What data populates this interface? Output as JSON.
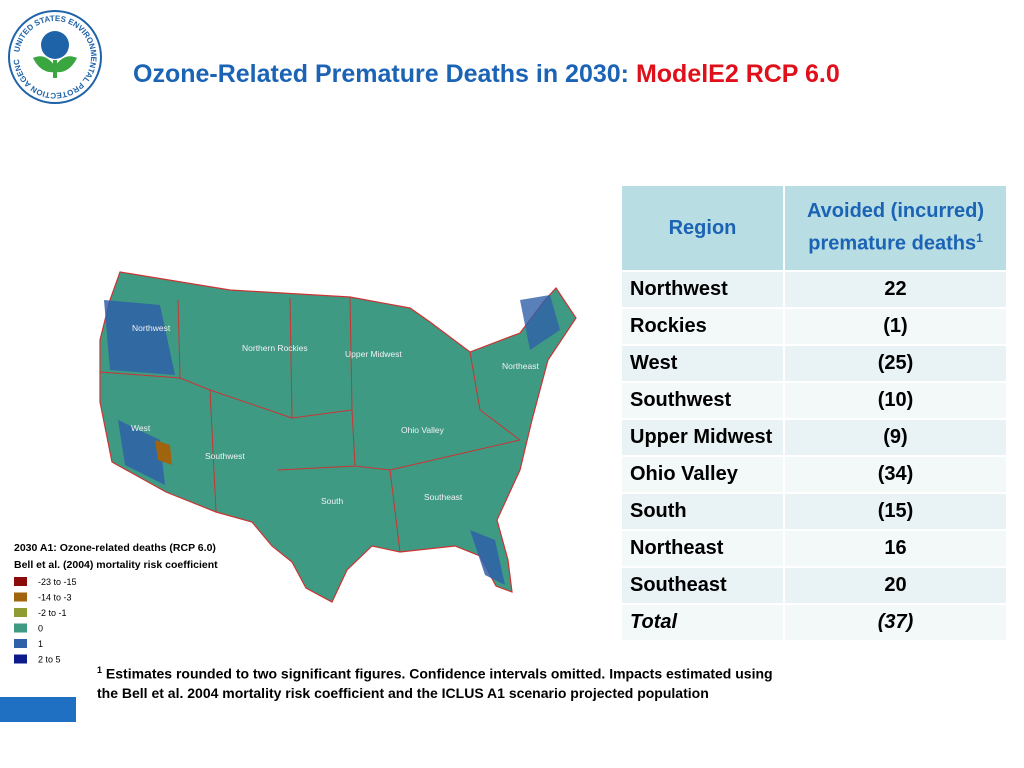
{
  "header": {
    "logo_text": "UNITED STATES ENVIRONMENTAL PROTECTION AGENCY",
    "title_main": "Ozone-Related Premature Deaths in 2030:",
    "title_model": "ModelE2 RCP 6.0"
  },
  "map": {
    "region_labels": [
      "Northwest",
      "Northern Rockies",
      "Upper Midwest",
      "Northeast",
      "West",
      "Ohio Valley",
      "Southwest",
      "South",
      "Southeast"
    ],
    "legend": {
      "title_line1": "2030 A1: Ozone-related deaths (RCP 6.0)",
      "title_line2": "Bell et al. (2004) mortality risk coefficient",
      "items": [
        {
          "label": "-23 to -15",
          "color": "#8b0a0a"
        },
        {
          "label": "-14 to -3",
          "color": "#a0640f"
        },
        {
          "label": "-2 to -1",
          "color": "#8f9c32"
        },
        {
          "label": "0",
          "color": "#3f9a84"
        },
        {
          "label": "1",
          "color": "#2f60a8"
        },
        {
          "label": "2 to 5",
          "color": "#0c1a8c"
        }
      ]
    }
  },
  "table": {
    "header": [
      "Region",
      "Avoided (incurred) premature deaths",
      "1"
    ],
    "rows": [
      [
        "Northwest",
        "22"
      ],
      [
        "Rockies",
        "(1)"
      ],
      [
        "West",
        "(25)"
      ],
      [
        "Southwest",
        "(10)"
      ],
      [
        "Upper Midwest",
        "(9)"
      ],
      [
        "Ohio Valley",
        "(34)"
      ],
      [
        "South",
        "(15)"
      ],
      [
        "Northeast",
        "16"
      ],
      [
        "Southeast",
        "20"
      ],
      [
        "Total",
        "(37)"
      ]
    ]
  },
  "footnote": {
    "marker": "1",
    "text": "Estimates rounded to two significant figures. Confidence intervals omitted. Impacts estimated using the Bell et al. 2004 mortality risk coefficient and the ICLUS A1 scenario projected population"
  }
}
